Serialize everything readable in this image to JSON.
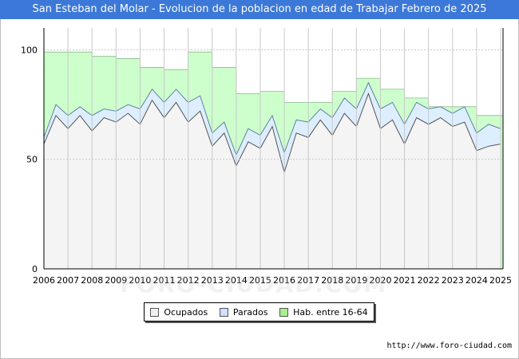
{
  "title": "San Esteban del Molar - Evolucion de la poblacion en edad de Trabajar Febrero de 2025",
  "source": "http://www.foro-ciudad.com",
  "watermark": "FORO-CIUDAD.COM",
  "colors": {
    "title_bg": "#3c78d8",
    "hab_fill": "#ccffcc",
    "parados_fill": "#ddeeff",
    "ocupados_fill": "#f4f4f4",
    "line": "#444444"
  },
  "legend": [
    {
      "label": "Ocupados",
      "color": "#f0f0f0"
    },
    {
      "label": "Parados",
      "color": "#cce0ff"
    },
    {
      "label": "Hab. entre 16-64",
      "color": "#a8f08c"
    }
  ],
  "chart_data": {
    "type": "area",
    "title": "San Esteban del Molar - Evolucion de la poblacion en edad de Trabajar Febrero de 2025",
    "xlabel": "",
    "ylabel": "",
    "xlim": [
      2006,
      2025.1
    ],
    "ylim": [
      0,
      110
    ],
    "yticks": [
      0,
      50,
      100
    ],
    "xticks": [
      "2006",
      "2007",
      "2008",
      "2009",
      "2010",
      "2011",
      "2012",
      "2013",
      "2014",
      "2015",
      "2016",
      "2017",
      "2018",
      "2019",
      "2020",
      "2021",
      "2022",
      "2023",
      "2024",
      "2025"
    ],
    "series": [
      {
        "name": "Hab. entre 16-64",
        "step": true,
        "x": [
          2006,
          2007,
          2008,
          2009,
          2010,
          2011,
          2012,
          2013,
          2014,
          2015,
          2016,
          2017,
          2018,
          2019,
          2020,
          2021,
          2022,
          2023,
          2024,
          2025
        ],
        "values": [
          99,
          99,
          97,
          96,
          92,
          91,
          99,
          92,
          80,
          81,
          76,
          76,
          81,
          87,
          82,
          78,
          74,
          74,
          70,
          70
        ]
      },
      {
        "name": "Parados",
        "x": [
          2006,
          2006.5,
          2007,
          2007.5,
          2008,
          2008.5,
          2009,
          2009.5,
          2010,
          2010.5,
          2011,
          2011.5,
          2012,
          2012.5,
          2013,
          2013.5,
          2014,
          2014.5,
          2015,
          2015.5,
          2016,
          2016.5,
          2017,
          2017.5,
          2018,
          2018.5,
          2019,
          2019.5,
          2020,
          2020.5,
          2021,
          2021.5,
          2022,
          2022.5,
          2023,
          2023.5,
          2024,
          2024.5,
          2025
        ],
        "values": [
          60,
          75,
          70,
          74,
          70,
          73,
          72,
          75,
          73,
          82,
          76,
          82,
          76,
          79,
          62,
          67,
          52,
          64,
          61,
          70,
          53,
          68,
          67,
          73,
          69,
          78,
          73,
          85,
          73,
          76,
          66,
          76,
          73,
          74,
          71,
          74,
          62,
          66,
          64
        ]
      },
      {
        "name": "Ocupados",
        "x": [
          2006,
          2006.5,
          2007,
          2007.5,
          2008,
          2008.5,
          2009,
          2009.5,
          2010,
          2010.5,
          2011,
          2011.5,
          2012,
          2012.5,
          2013,
          2013.5,
          2014,
          2014.5,
          2015,
          2015.5,
          2016,
          2016.5,
          2017,
          2017.5,
          2018,
          2018.5,
          2019,
          2019.5,
          2020,
          2020.5,
          2021,
          2021.5,
          2022,
          2022.5,
          2023,
          2023.5,
          2024,
          2024.5,
          2025
        ],
        "values": [
          57,
          70,
          64,
          70,
          63,
          69,
          67,
          71,
          66,
          77,
          69,
          76,
          67,
          72,
          56,
          62,
          47,
          58,
          55,
          65,
          44,
          62,
          60,
          68,
          61,
          71,
          65,
          80,
          64,
          68,
          57,
          69,
          66,
          69,
          65,
          67,
          54,
          56,
          57
        ]
      }
    ]
  }
}
